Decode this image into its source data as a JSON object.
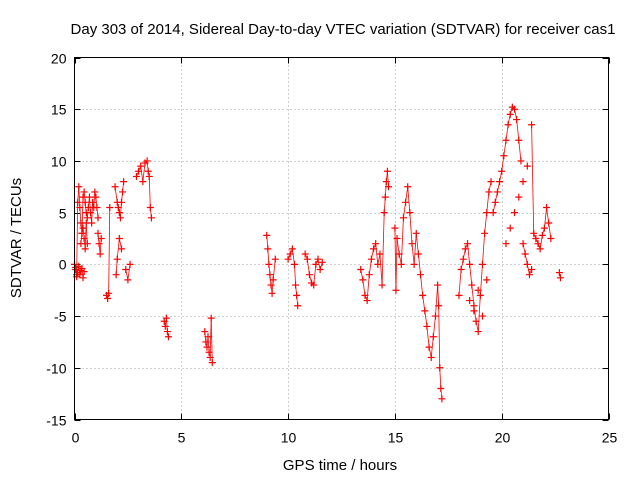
{
  "chart_data": {
    "type": "scatter",
    "title": "Day 303 of 2014, Sidereal Day-to-day VTEC variation (SDTVAR) for receiver cas1",
    "xlabel": "GPS time / hours",
    "ylabel": "SDTVAR / TECUs",
    "xlim": [
      0,
      25
    ],
    "ylim": [
      -15,
      20
    ],
    "xticks": [
      0,
      5,
      10,
      15,
      20,
      25
    ],
    "yticks": [
      -15,
      -10,
      -5,
      0,
      5,
      10,
      15,
      20
    ],
    "grid": true,
    "marker": "plus",
    "color": "#ff0000",
    "series": [
      {
        "name": "SDTVAR",
        "x": [
          0.0,
          0.05,
          0.1,
          0.15,
          0.2,
          0.25,
          0.3,
          0.35,
          0.4,
          0.45,
          0.5,
          0.55,
          0.6,
          0.65,
          0.7,
          0.75,
          0.8,
          0.85,
          0.9,
          0.95,
          1.0,
          1.05,
          1.1,
          0.05,
          0.1,
          0.15,
          0.2,
          0.25,
          0.3,
          0.35,
          0.4,
          0.45,
          0.3,
          0.35,
          0.4,
          0.45,
          0.5,
          0.55,
          0.6,
          1.1,
          1.15,
          1.2,
          1.25,
          1.5,
          1.55,
          1.6,
          1.65,
          1.9,
          2.0,
          2.05,
          2.1,
          2.15,
          2.2,
          2.25,
          2.3,
          1.95,
          2.0,
          2.1,
          2.2,
          2.4,
          2.5,
          2.6,
          2.9,
          3.0,
          3.1,
          3.2,
          3.3,
          3.4,
          3.45,
          3.5,
          3.55,
          3.6,
          4.2,
          4.25,
          4.3,
          4.35,
          4.4,
          6.1,
          6.15,
          6.2,
          6.25,
          6.3,
          6.35,
          6.4,
          6.45,
          9.0,
          9.05,
          9.1,
          9.15,
          9.2,
          9.25,
          9.3,
          9.4,
          10.0,
          10.1,
          10.2,
          10.3,
          10.35,
          10.4,
          10.45,
          10.8,
          10.9,
          11.0,
          11.1,
          11.2,
          11.3,
          11.4,
          11.5,
          11.6,
          13.4,
          13.5,
          13.6,
          13.7,
          13.8,
          13.9,
          14.0,
          14.1,
          14.2,
          14.3,
          14.4,
          14.5,
          14.55,
          14.6,
          14.65,
          14.7,
          15.0,
          15.05,
          15.1,
          15.2,
          15.3,
          15.4,
          15.5,
          15.6,
          15.7,
          15.8,
          15.9,
          16.0,
          16.1,
          16.2,
          16.3,
          16.4,
          16.5,
          16.6,
          16.7,
          16.8,
          16.9,
          17.0,
          17.05,
          17.1,
          17.15,
          17.2,
          18.0,
          18.1,
          18.2,
          18.3,
          18.4,
          18.5,
          18.6,
          18.7,
          18.8,
          18.9,
          19.0,
          19.1,
          19.2,
          19.3,
          19.4,
          19.5,
          18.5,
          18.7,
          18.9,
          19.1,
          19.3,
          19.6,
          19.7,
          19.8,
          19.9,
          20.0,
          20.1,
          20.2,
          20.3,
          20.4,
          20.5,
          20.6,
          20.7,
          20.8,
          20.9,
          20.2,
          20.4,
          20.6,
          20.8,
          21.0,
          21.2,
          21.4,
          21.5,
          21.6,
          21.7,
          21.8,
          21.9,
          22.0,
          22.1,
          22.2,
          22.3,
          21.0,
          21.1,
          21.2,
          21.3,
          21.4,
          22.7,
          22.75
        ],
        "y": [
          0.0,
          -0.5,
          -1.0,
          6.0,
          7.5,
          5.5,
          4.0,
          3.0,
          6.5,
          7.0,
          6.0,
          5.0,
          4.5,
          5.5,
          6.5,
          5.0,
          4.0,
          6.0,
          5.5,
          7.0,
          6.5,
          5.5,
          4.5,
          -0.3,
          -1.2,
          -0.8,
          -0.2,
          -1.0,
          -0.6,
          -0.4,
          -1.3,
          -0.7,
          2.0,
          3.0,
          3.5,
          2.5,
          1.5,
          4.0,
          2.0,
          3.0,
          2.0,
          1.0,
          2.5,
          -3.0,
          -3.3,
          -2.8,
          5.5,
          7.5,
          6.0,
          5.5,
          5.0,
          4.5,
          6.0,
          7.0,
          8.0,
          -1.0,
          0.5,
          2.5,
          1.5,
          -0.5,
          -1.5,
          0.0,
          8.5,
          9.0,
          9.5,
          8.0,
          9.8,
          10.0,
          9.0,
          8.5,
          5.5,
          4.5,
          -5.5,
          -6.0,
          -5.2,
          -6.5,
          -7.0,
          -6.5,
          -7.5,
          -8.0,
          -7.0,
          -8.5,
          -9.0,
          -5.2,
          -9.5,
          2.8,
          1.5,
          0.0,
          -1.0,
          -2.0,
          -2.8,
          -1.5,
          0.5,
          0.5,
          1.0,
          1.5,
          0.0,
          -2.0,
          -3.0,
          -4.0,
          1.0,
          0.5,
          -1.0,
          -1.8,
          -2.0,
          0.0,
          0.5,
          -0.5,
          0.2,
          -0.5,
          -1.5,
          -3.0,
          -3.5,
          -1.0,
          0.5,
          1.5,
          2.0,
          0.0,
          1.0,
          -2.0,
          5.0,
          6.5,
          8.0,
          9.0,
          7.5,
          3.5,
          -2.5,
          2.5,
          1.0,
          0.0,
          4.5,
          6.0,
          7.5,
          5.0,
          2.0,
          0.0,
          3.0,
          1.0,
          -1.0,
          -3.0,
          -4.5,
          -6.0,
          -8.0,
          -9.0,
          -7.0,
          -5.0,
          -2.0,
          -4.0,
          -10.0,
          -12.0,
          -13.0,
          -3.0,
          -0.5,
          0.5,
          1.5,
          2.0,
          0.0,
          -2.0,
          -4.0,
          -5.5,
          -6.5,
          -3.0,
          0.0,
          3.0,
          5.0,
          7.0,
          8.0,
          -3.5,
          -4.5,
          -2.5,
          -5.0,
          -1.5,
          5.0,
          6.0,
          7.0,
          8.0,
          9.0,
          10.5,
          12.0,
          13.5,
          14.5,
          15.2,
          15.0,
          14.0,
          12.0,
          10.0,
          2.0,
          3.5,
          5.0,
          6.5,
          8.0,
          9.5,
          13.5,
          3.0,
          2.5,
          2.0,
          1.5,
          2.8,
          3.5,
          5.5,
          4.0,
          2.5,
          2.0,
          1.0,
          0.0,
          -1.0,
          -0.5,
          -0.8,
          -1.3
        ]
      }
    ]
  }
}
